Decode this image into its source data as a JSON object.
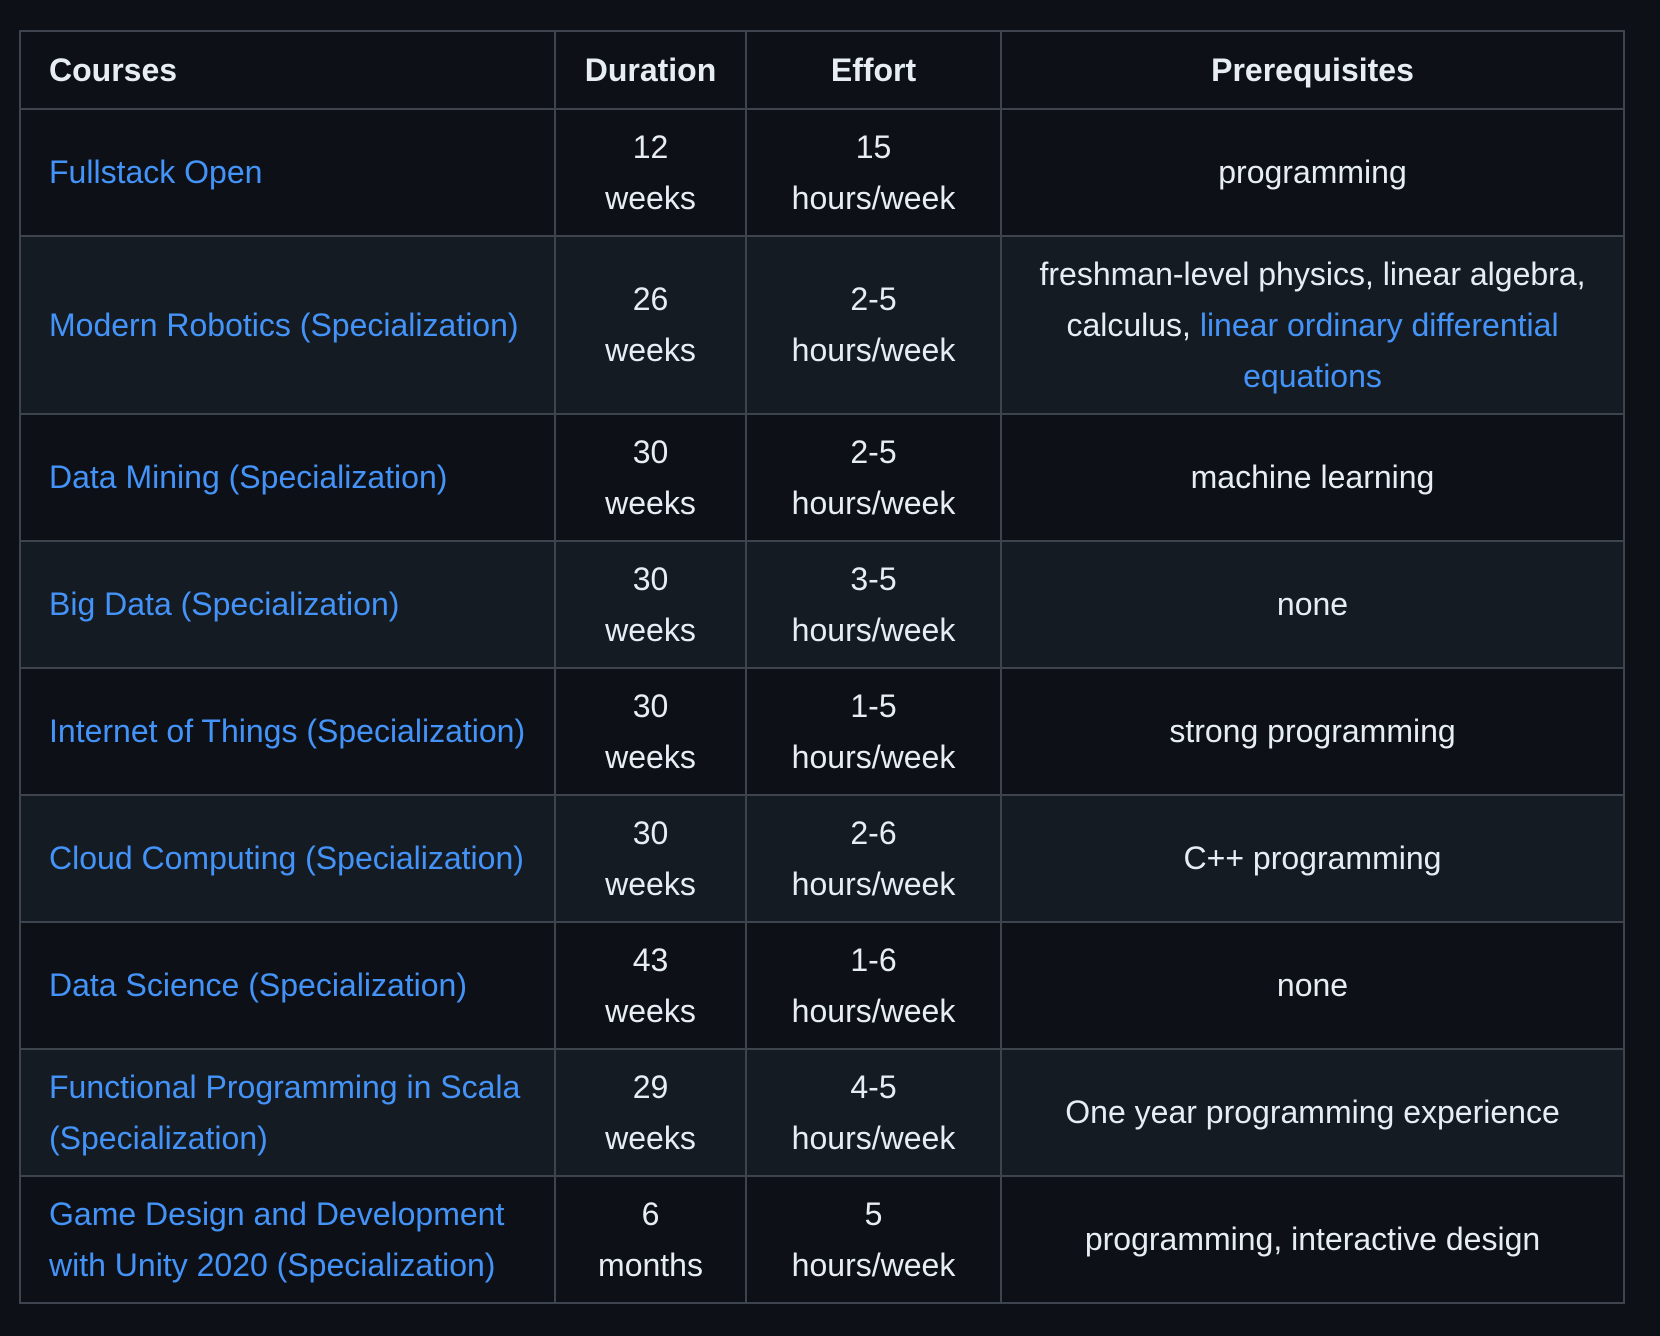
{
  "table": {
    "headers": {
      "courses": "Courses",
      "duration": "Duration",
      "effort": "Effort",
      "prerequisites": "Prerequisites"
    },
    "rows": [
      {
        "course": "Fullstack Open",
        "duration_num": "12",
        "duration_unit": "weeks",
        "effort_num": "15",
        "effort_unit": "hours/week",
        "prereq_text": "programming",
        "prereq_link": ""
      },
      {
        "course": "Modern Robotics (Specialization)",
        "duration_num": "26",
        "duration_unit": "weeks",
        "effort_num": "2-5",
        "effort_unit": "hours/week",
        "prereq_text": "freshman-level physics, linear algebra, calculus, ",
        "prereq_link": "linear ordinary differential equations"
      },
      {
        "course": "Data Mining (Specialization)",
        "duration_num": "30",
        "duration_unit": "weeks",
        "effort_num": "2-5",
        "effort_unit": "hours/week",
        "prereq_text": "machine learning",
        "prereq_link": ""
      },
      {
        "course": "Big Data (Specialization)",
        "duration_num": "30",
        "duration_unit": "weeks",
        "effort_num": "3-5",
        "effort_unit": "hours/week",
        "prereq_text": "none",
        "prereq_link": ""
      },
      {
        "course": "Internet of Things (Specialization)",
        "duration_num": "30",
        "duration_unit": "weeks",
        "effort_num": "1-5",
        "effort_unit": "hours/week",
        "prereq_text": "strong programming",
        "prereq_link": ""
      },
      {
        "course": "Cloud Computing (Specialization)",
        "duration_num": "30",
        "duration_unit": "weeks",
        "effort_num": "2-6",
        "effort_unit": "hours/week",
        "prereq_text": "C++ programming",
        "prereq_link": ""
      },
      {
        "course": "Data Science (Specialization)",
        "duration_num": "43",
        "duration_unit": "weeks",
        "effort_num": "1-6",
        "effort_unit": "hours/week",
        "prereq_text": "none",
        "prereq_link": ""
      },
      {
        "course": "Functional Programming in Scala (Specialization)",
        "duration_num": "29",
        "duration_unit": "weeks",
        "effort_num": "4-5",
        "effort_unit": "hours/week",
        "prereq_text": "One year programming experience",
        "prereq_link": ""
      },
      {
        "course": "Game Design and Development with Unity 2020 (Specialization)",
        "duration_num": "6",
        "duration_unit": "months",
        "effort_num": "5",
        "effort_unit": "hours/week",
        "prereq_text": "programming, interactive design",
        "prereq_link": ""
      }
    ]
  },
  "colors": {
    "background": "#0d1117",
    "row_alt": "#151b23",
    "border": "#3d444d",
    "text": "#e6edf3",
    "link": "#4493f8"
  }
}
